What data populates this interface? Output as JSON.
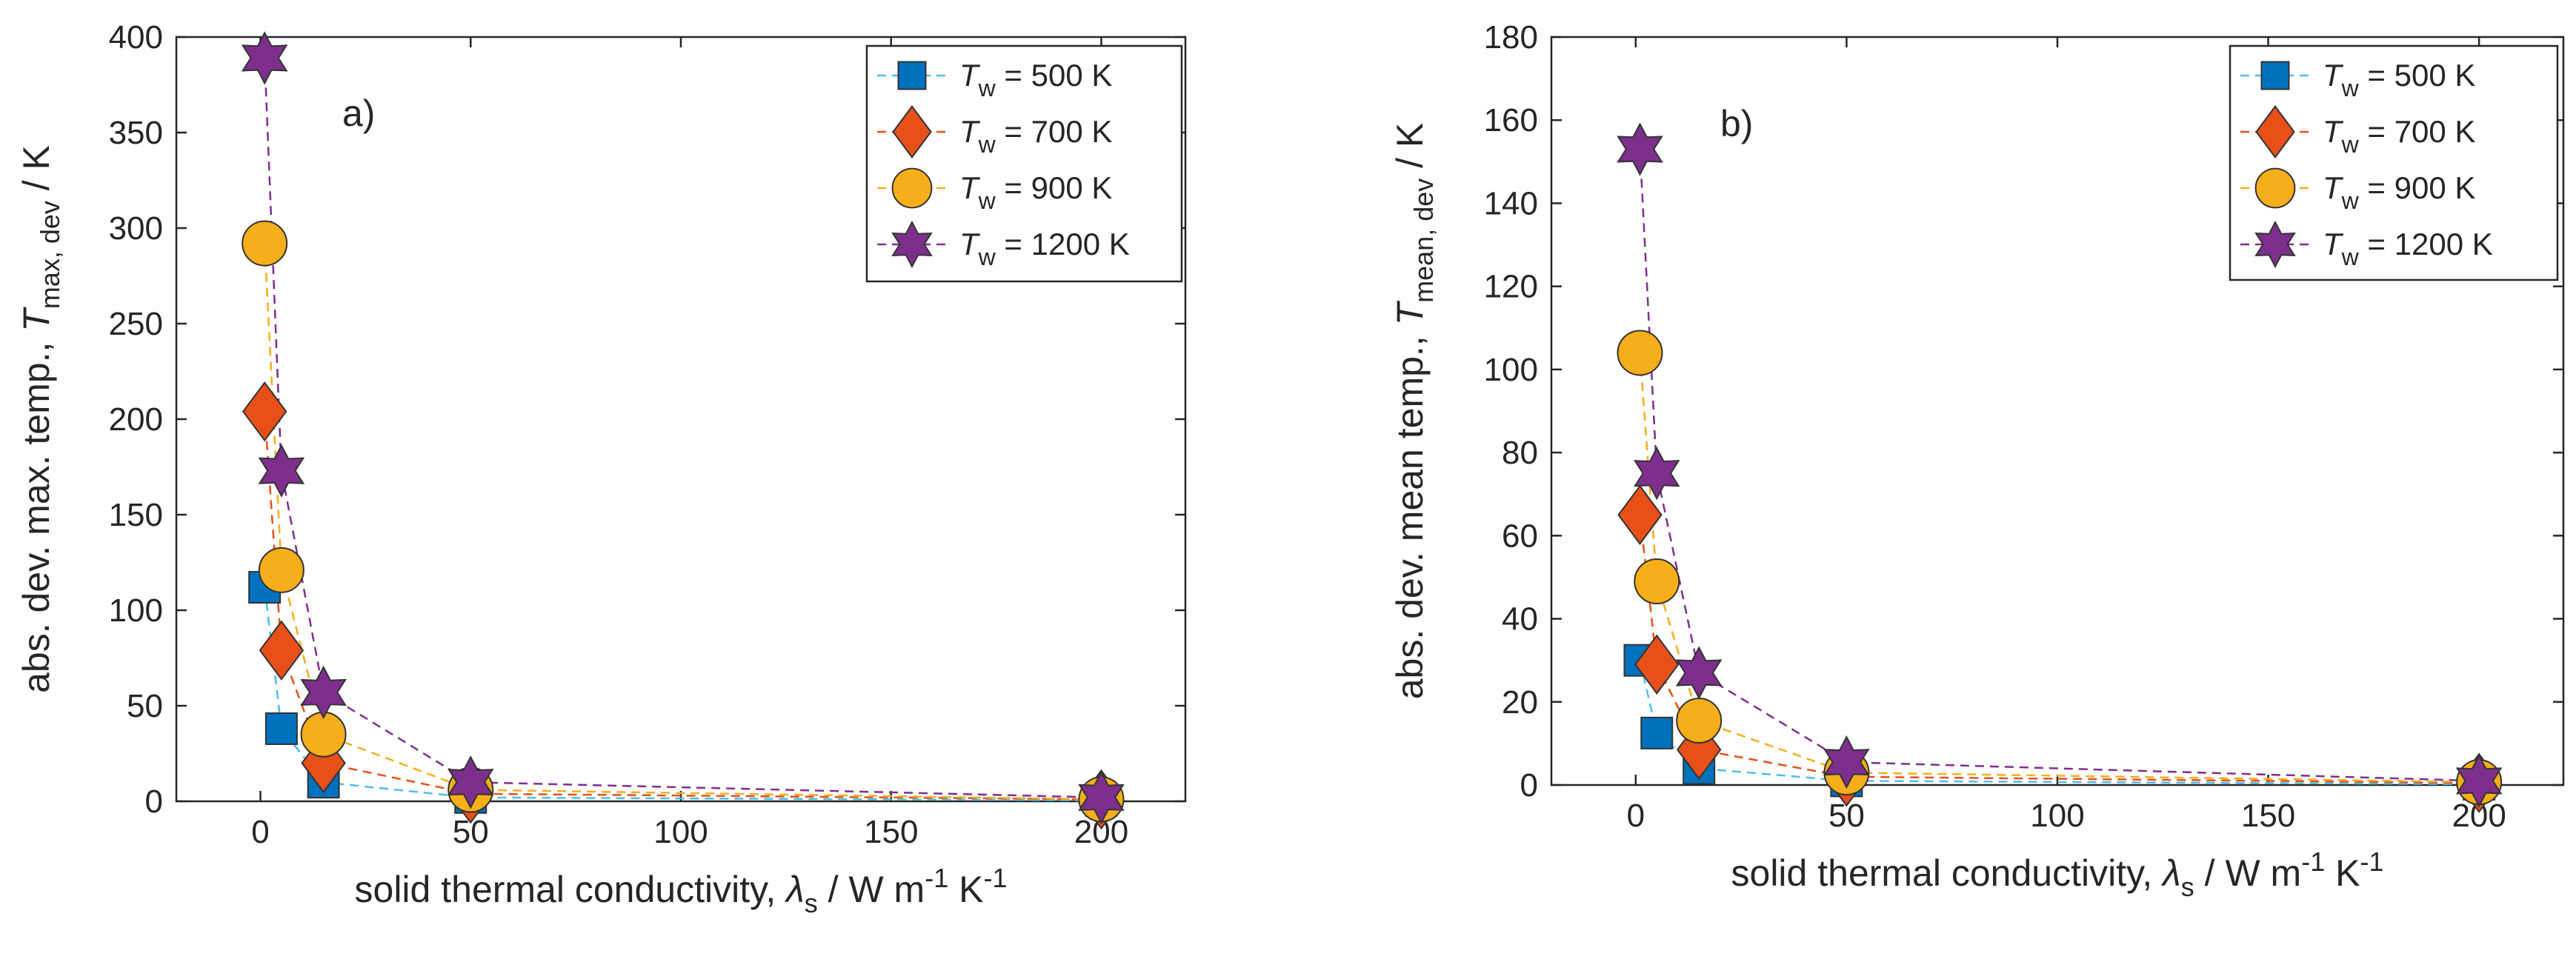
{
  "colors": {
    "500": "#0072BD",
    "700": "#E8501A",
    "900": "#F6AE1A",
    "1200": "#7E2F8E",
    "axis": "#262626",
    "line_500": "#4DBEEE"
  },
  "chart_data": [
    {
      "type": "scatter",
      "panel_label": "a)",
      "xlabel": "solid thermal conductivity, ",
      "xlabel_symbol": "λ",
      "xlabel_symbol_sub": "s",
      "xlabel_units": " / W m",
      "xlabel_exp1": "-1",
      "xlabel_units2": " K",
      "xlabel_exp2": "-1",
      "ylabel": "abs. dev. max. temp., ",
      "ylabel_symbol": "T",
      "ylabel_sub": "max, dev",
      "ylabel_units": " / K",
      "xlim": [
        -20,
        220
      ],
      "ylim": [
        0,
        400
      ],
      "xticks": [
        0,
        50,
        100,
        150,
        200
      ],
      "yticks": [
        0,
        50,
        100,
        150,
        200,
        250,
        300,
        350,
        400
      ],
      "x": [
        1,
        5,
        15,
        50,
        200
      ],
      "series": [
        {
          "name": "500",
          "label_prefix": "T",
          "label_sub": "w",
          "label_suffix": " = 500 K",
          "marker": "square",
          "values": [
            112,
            38,
            10,
            2,
            0.5
          ]
        },
        {
          "name": "700",
          "label_prefix": "T",
          "label_sub": "w",
          "label_suffix": " = 700 K",
          "marker": "diamond",
          "values": [
            204,
            79,
            20,
            4,
            1
          ]
        },
        {
          "name": "900",
          "label_prefix": "T",
          "label_sub": "w",
          "label_suffix": " = 900 K",
          "marker": "circle",
          "values": [
            292,
            121,
            35,
            6,
            1
          ]
        },
        {
          "name": "1200",
          "label_prefix": "T",
          "label_sub": "w",
          "label_suffix": " = 1200 K",
          "marker": "hexagram",
          "values": [
            389,
            173,
            57,
            10,
            2
          ]
        }
      ]
    },
    {
      "type": "scatter",
      "panel_label": "b)",
      "xlabel": "solid thermal conductivity, ",
      "xlabel_symbol": "λ",
      "xlabel_symbol_sub": "s",
      "xlabel_units": " / W m",
      "xlabel_exp1": "-1",
      "xlabel_units2": " K",
      "xlabel_exp2": "-1",
      "ylabel": "abs. dev. mean temp., ",
      "ylabel_symbol": "T",
      "ylabel_sub": "mean, dev",
      "ylabel_units": " / K",
      "xlim": [
        -20,
        220
      ],
      "ylim": [
        0,
        180
      ],
      "xticks": [
        0,
        50,
        100,
        150,
        200
      ],
      "yticks": [
        0,
        20,
        40,
        60,
        80,
        100,
        120,
        140,
        160,
        180
      ],
      "x": [
        1,
        5,
        15,
        50,
        200
      ],
      "series": [
        {
          "name": "500",
          "label_prefix": "T",
          "label_sub": "w",
          "label_suffix": " = 500 K",
          "marker": "square",
          "values": [
            30,
            12.5,
            4,
            1,
            0.2
          ]
        },
        {
          "name": "700",
          "label_prefix": "T",
          "label_sub": "w",
          "label_suffix": " = 700 K",
          "marker": "diamond",
          "values": [
            65,
            29,
            8.5,
            2,
            0.5
          ]
        },
        {
          "name": "900",
          "label_prefix": "T",
          "label_sub": "w",
          "label_suffix": " = 900 K",
          "marker": "circle",
          "values": [
            104,
            49,
            15.5,
            3,
            0.7
          ]
        },
        {
          "name": "1200",
          "label_prefix": "T",
          "label_sub": "w",
          "label_suffix": " = 1200 K",
          "marker": "hexagram",
          "values": [
            153,
            75,
            27,
            5.5,
            1
          ]
        }
      ]
    }
  ]
}
